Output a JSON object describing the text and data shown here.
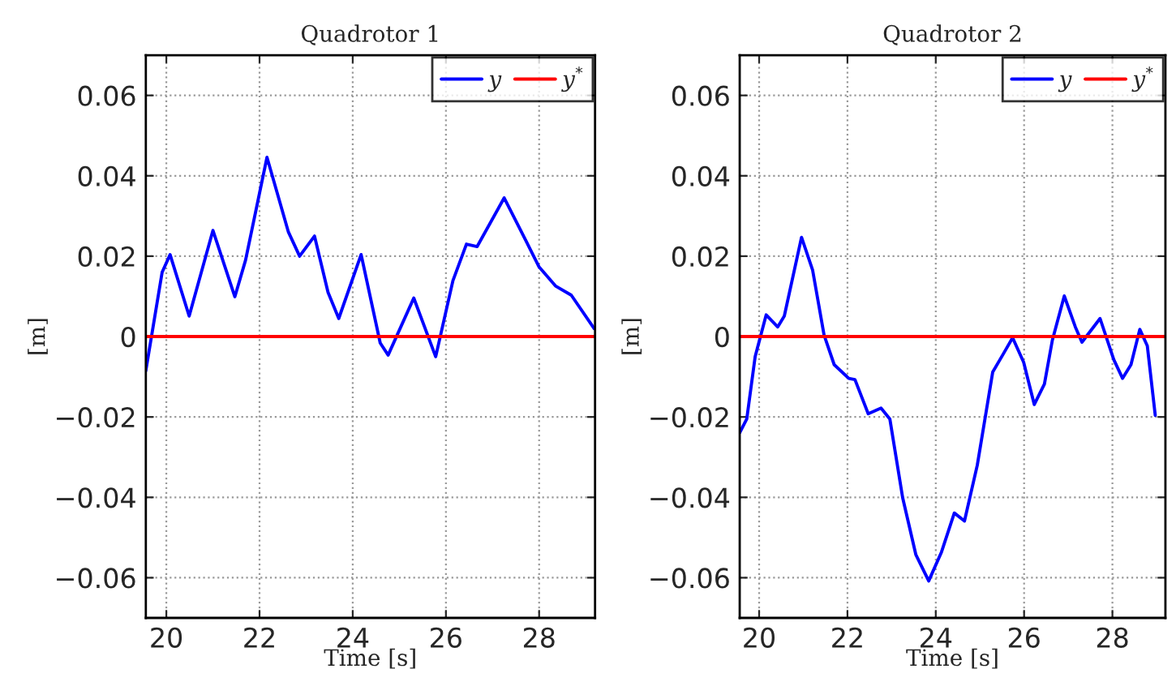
{
  "chart_data": [
    {
      "type": "line",
      "title": "Quadrotor 1",
      "xlabel": "Time [s]",
      "ylabel": "[m]",
      "xlim": [
        19.56,
        29.2
      ],
      "ylim": [
        -0.07,
        0.07
      ],
      "xticks": [
        20,
        22,
        24,
        26,
        28
      ],
      "yticks": [
        {
          "value": -0.06,
          "label": "−0.06"
        },
        {
          "value": -0.04,
          "label": "−0.04"
        },
        {
          "value": -0.02,
          "label": "−0.02"
        },
        0,
        0.02,
        0.04,
        0.06
      ],
      "grid": true,
      "legend": "top right",
      "line_style": "solid",
      "series": [
        {
          "name": "y",
          "color": "#0000ff",
          "x": [
            19.56,
            19.91,
            20.08,
            20.49,
            21.0,
            21.47,
            21.7,
            22.16,
            22.62,
            22.86,
            23.18,
            23.47,
            23.7,
            24.18,
            24.59,
            24.76,
            25.31,
            25.78,
            26.15,
            26.44,
            26.67,
            27.25,
            27.71,
            28.0,
            28.35,
            28.69,
            29.18
          ],
          "values": [
            -0.0085,
            0.016,
            0.0204,
            0.0051,
            0.0264,
            0.0099,
            0.019,
            0.0446,
            0.026,
            0.02,
            0.025,
            0.011,
            0.0045,
            0.0204,
            -0.0016,
            -0.0046,
            0.0096,
            -0.005,
            0.0139,
            0.023,
            0.0224,
            0.0345,
            0.024,
            0.0173,
            0.0126,
            0.0103,
            0.002
          ]
        },
        {
          "name": "y$^{*}$",
          "color": "#ff0000",
          "x": [
            19.56,
            29.2
          ],
          "values": [
            0,
            0
          ]
        }
      ]
    },
    {
      "type": "line",
      "title": "Quadrotor 2",
      "xlabel": "Time [s]",
      "ylabel": "[m]",
      "xlim": [
        19.56,
        29.2
      ],
      "ylim": [
        -0.07,
        0.07
      ],
      "xticks": [
        20,
        22,
        24,
        26,
        28
      ],
      "yticks": [
        {
          "value": -0.06,
          "label": "−0.06"
        },
        {
          "value": -0.04,
          "label": "−0.04"
        },
        {
          "value": -0.02,
          "label": "−0.02"
        },
        0,
        0.02,
        0.04,
        0.06
      ],
      "grid": true,
      "legend": "top right",
      "line_style": "solid",
      "series": [
        {
          "name": "y",
          "color": "#0000ff",
          "x": [
            19.56,
            19.72,
            19.91,
            20.16,
            20.42,
            20.57,
            20.96,
            21.21,
            21.47,
            21.7,
            22.03,
            22.17,
            22.47,
            22.76,
            22.96,
            23.25,
            23.55,
            23.84,
            24.13,
            24.42,
            24.65,
            24.94,
            25.29,
            25.53,
            25.74,
            25.99,
            26.23,
            26.46,
            26.64,
            26.91,
            27.16,
            27.31,
            27.72,
            28.03,
            28.23,
            28.42,
            28.62,
            28.79,
            28.97
          ],
          "values": [
            -0.0239,
            -0.0205,
            -0.005,
            0.0054,
            0.0024,
            0.0051,
            0.0247,
            0.0166,
            0.0004,
            -0.007,
            -0.0104,
            -0.0107,
            -0.0192,
            -0.0178,
            -0.0205,
            -0.0401,
            -0.0543,
            -0.0608,
            -0.0536,
            -0.0439,
            -0.0459,
            -0.032,
            -0.0088,
            -0.0043,
            -0.0003,
            -0.0064,
            -0.0169,
            -0.0118,
            -0.0009,
            0.0101,
            0.0024,
            -0.0014,
            0.0045,
            -0.0057,
            -0.0104,
            -0.007,
            0.0018,
            -0.0023,
            -0.0196
          ]
        },
        {
          "name": "y$^{*}$",
          "color": "#ff0000",
          "x": [
            19.56,
            29.2
          ],
          "values": [
            0,
            0
          ]
        }
      ]
    }
  ]
}
